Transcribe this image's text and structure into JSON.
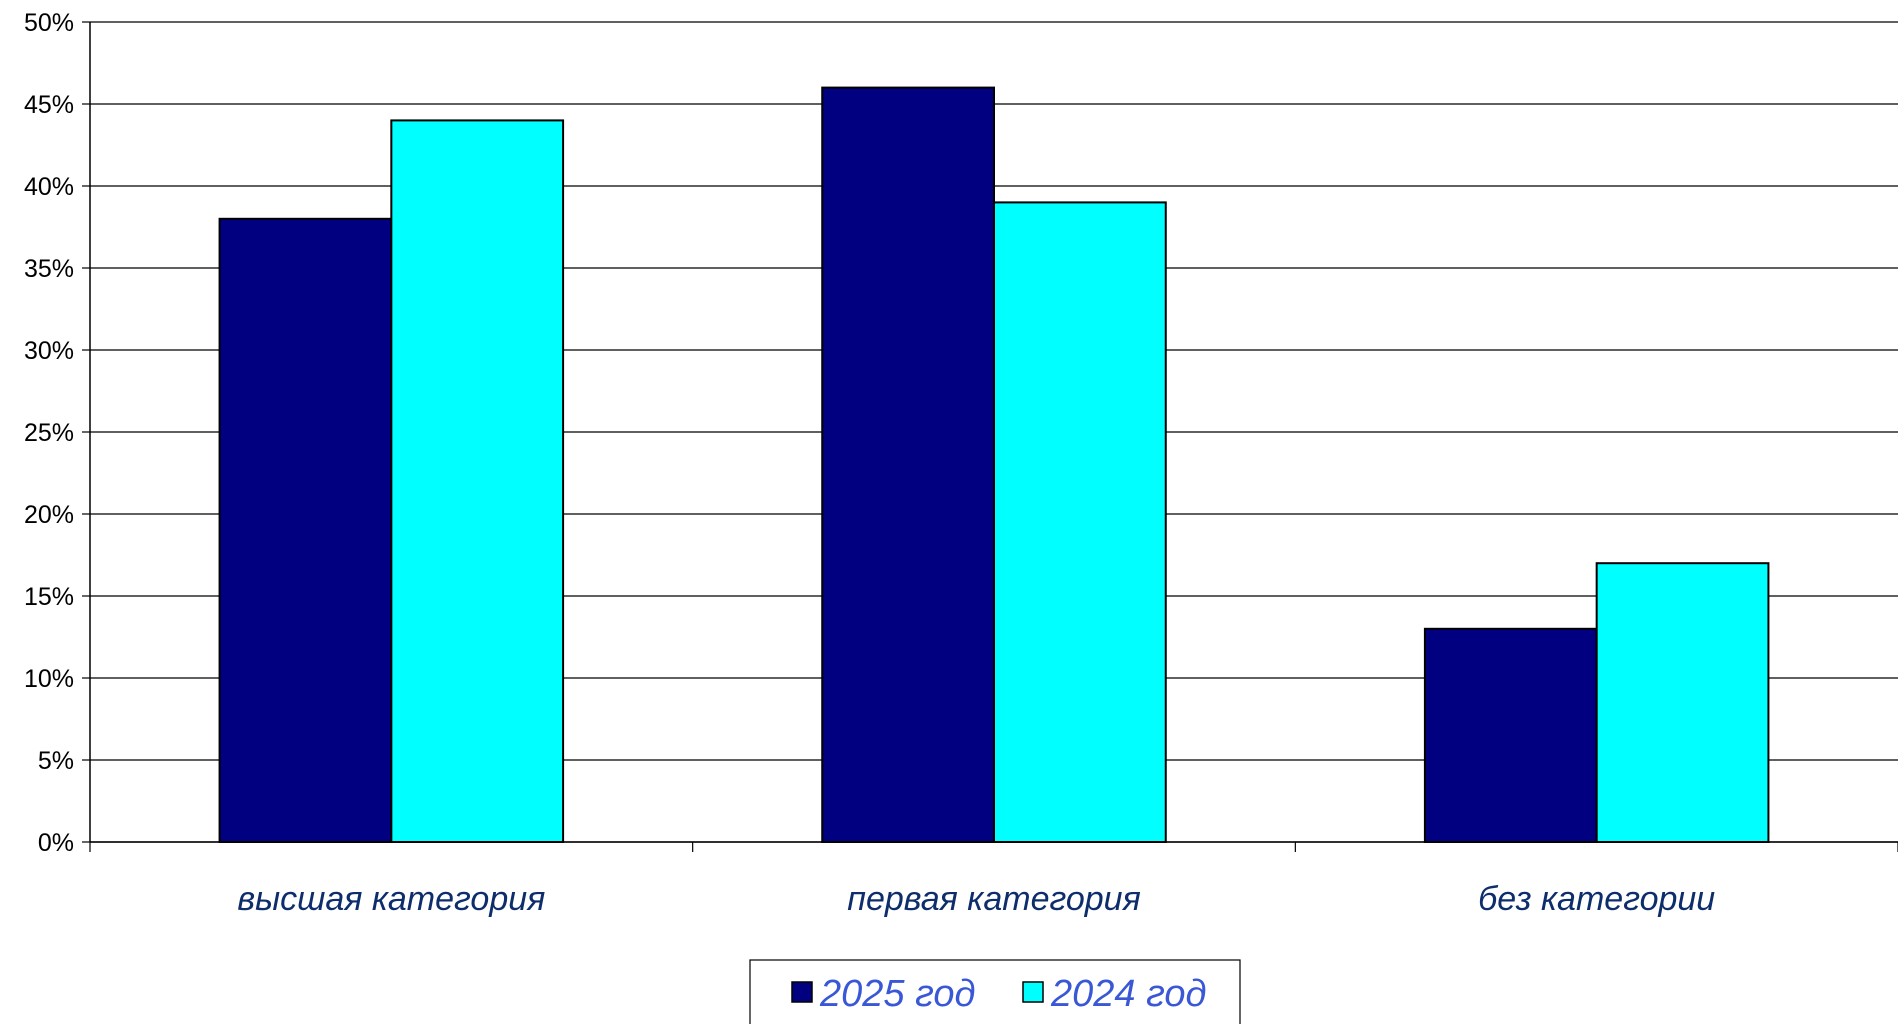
{
  "chart_data": {
    "type": "bar",
    "categories": [
      "высшая категория",
      "первая категория",
      "без категории"
    ],
    "series": [
      {
        "name": "2025 год",
        "values": [
          38,
          46,
          13
        ],
        "color": "#000080"
      },
      {
        "name": "2024 год",
        "values": [
          44,
          39,
          17
        ],
        "color": "#00ffff"
      }
    ],
    "ylim": [
      0,
      50
    ],
    "y_ticks": [
      "0%",
      "5%",
      "10%",
      "15%",
      "20%",
      "25%",
      "30%",
      "35%",
      "40%",
      "45%",
      "50%"
    ],
    "y_unit": "%",
    "grid": true,
    "legend_position": "bottom-center"
  },
  "colors": {
    "gridline": "#000000",
    "bar_outline": "#000000",
    "category_label": "#0d2d6b",
    "legend_text": "#3a57d6"
  }
}
